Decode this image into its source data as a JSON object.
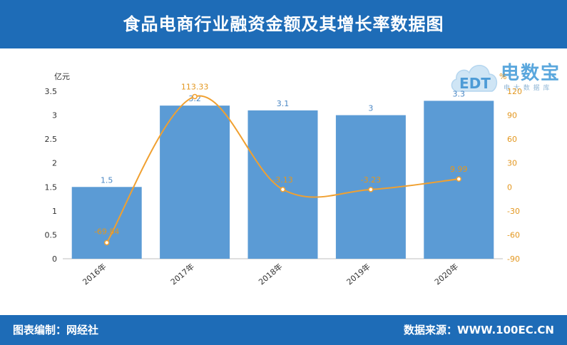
{
  "header": {
    "title": "食品电商行业融资金额及其增长率数据图"
  },
  "footer": {
    "left": "图表编制：网经社",
    "right": "数据来源：WWW.100EC.CN"
  },
  "logo": {
    "brand": "电数宝",
    "cloud_text": "EDT",
    "sub": "电 大 数 据 库"
  },
  "chart_data": {
    "type": "bar",
    "categories": [
      "2016年",
      "2017年",
      "2018年",
      "2019年",
      "2020年"
    ],
    "series": [
      {
        "name": "",
        "type": "bar",
        "axis": "left",
        "values": [
          1.5,
          3.2,
          3.1,
          3,
          3.3
        ],
        "labels": [
          "1.5",
          "3.2",
          "3.1",
          "3",
          "3.3"
        ],
        "color": "#5b9bd5"
      },
      {
        "name": "",
        "type": "line",
        "axis": "right",
        "values": [
          -69.84,
          113.33,
          -3.13,
          -3.23,
          9.99
        ],
        "labels": [
          "-69.84",
          "113.33",
          "-3.13",
          "-3.23",
          "9.99"
        ],
        "color": "#f0a030"
      }
    ],
    "y_left": {
      "unit": "亿元",
      "ylim": [
        0,
        3.5
      ],
      "ticks": [
        "0",
        "0.5",
        "1",
        "1.5",
        "2",
        "2.5",
        "3",
        "3.5"
      ]
    },
    "y_right": {
      "unit": "%",
      "ylim": [
        -90,
        120
      ],
      "ticks": [
        "-90",
        "-60",
        "-30",
        "0",
        "30",
        "60",
        "90",
        "120"
      ]
    },
    "grid": false,
    "legend": "none"
  }
}
